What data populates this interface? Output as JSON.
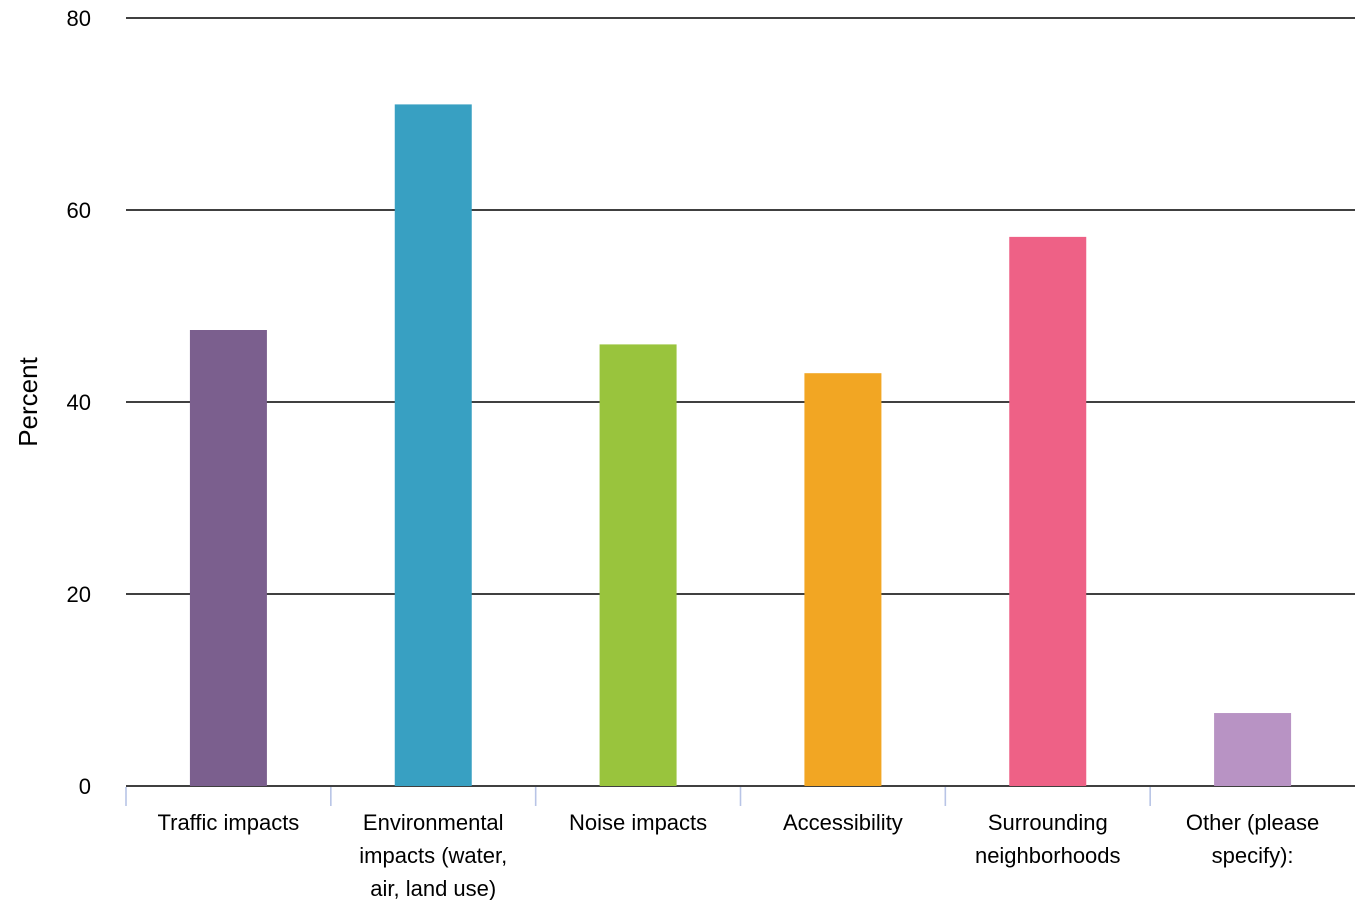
{
  "chart_data": {
    "type": "bar",
    "title": "",
    "xlabel": "",
    "ylabel": "Percent",
    "ylim": [
      0,
      80
    ],
    "yticks": [
      0,
      20,
      40,
      60,
      80
    ],
    "grid": true,
    "legend": "none",
    "categories": [
      [
        "Traffic impacts"
      ],
      [
        "Environmental",
        "impacts (water,",
        "air, land use)"
      ],
      [
        "Noise impacts"
      ],
      [
        "Accessibility"
      ],
      [
        "Surrounding",
        "neighborhoods"
      ],
      [
        "Other (please",
        "specify):"
      ]
    ],
    "values": [
      47.5,
      71,
      46,
      43,
      57.2,
      7.6
    ],
    "colors": [
      "#7b5f8e",
      "#38a0c2",
      "#99c43d",
      "#f2a623",
      "#ee6186",
      "#b893c4"
    ]
  }
}
